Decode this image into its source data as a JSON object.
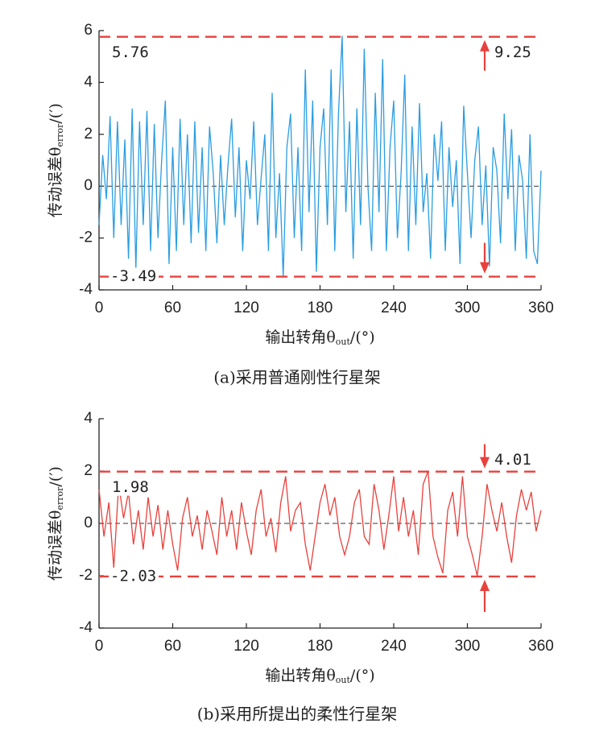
{
  "chart_data": [
    {
      "type": "line",
      "caption": "(a)采用普通刚性行星架",
      "xlabel": {
        "text": "输出转角θ",
        "sub": "out",
        "suffix": "/(°)"
      },
      "ylabel": {
        "text": "传动误差θ",
        "sub": "error",
        "suffix": "/(′)"
      },
      "xlim": [
        0,
        360
      ],
      "xticks": [
        0,
        60,
        120,
        180,
        240,
        300,
        360
      ],
      "ylim": [
        -4,
        6
      ],
      "yticks": [
        -4,
        -2,
        0,
        2,
        4,
        6
      ],
      "ref_lines": [
        5.76,
        -3.49
      ],
      "ref_color": "#e8413c",
      "range_label": 9.25,
      "range_arrows": "out",
      "x": [
        0,
        3,
        6,
        9,
        12,
        15,
        18,
        21,
        24,
        27,
        30,
        33,
        36,
        39,
        42,
        45,
        48,
        51,
        54,
        57,
        60,
        63,
        66,
        69,
        72,
        75,
        78,
        81,
        84,
        87,
        90,
        93,
        96,
        99,
        102,
        105,
        108,
        111,
        114,
        117,
        120,
        123,
        126,
        129,
        132,
        135,
        138,
        141,
        144,
        147,
        150,
        153,
        156,
        159,
        162,
        165,
        168,
        171,
        174,
        177,
        180,
        183,
        186,
        189,
        192,
        195,
        198,
        201,
        204,
        207,
        210,
        213,
        216,
        219,
        222,
        225,
        228,
        231,
        234,
        237,
        240,
        243,
        246,
        249,
        252,
        255,
        258,
        261,
        264,
        267,
        270,
        273,
        276,
        279,
        282,
        285,
        288,
        291,
        294,
        297,
        300,
        303,
        306,
        309,
        312,
        315,
        318,
        321,
        324,
        327,
        330,
        333,
        336,
        339,
        342,
        345,
        348,
        351,
        354,
        357,
        360
      ],
      "series": [
        {
          "color": "#2a9de0",
          "values": [
            -1.5,
            1.2,
            -0.5,
            2.7,
            -2,
            2.5,
            -1.5,
            1.8,
            -2.8,
            3.0,
            -3.2,
            2.5,
            -1.5,
            2.9,
            -2.5,
            2.4,
            -2,
            1,
            3.3,
            -3,
            1.5,
            -2.5,
            2.6,
            -1.5,
            2.0,
            -2.2,
            2.5,
            -1.8,
            1.5,
            -2.5,
            2.3,
            0.5,
            -2.2,
            1.2,
            -1.5,
            0.8,
            2.6,
            -1.2,
            1.5,
            -2.5,
            1.0,
            -0.5,
            2.5,
            -1.5,
            0.3,
            2.0,
            -2.5,
            3.6,
            -2,
            0.5,
            -3.5,
            1.5,
            2.8,
            -2,
            1.5,
            -2.5,
            4.5,
            -1,
            3.3,
            -3.3,
            1.5,
            3.0,
            -1.5,
            4.5,
            -2.5,
            2.8,
            5.8,
            -1,
            2.5,
            -2.8,
            3.0,
            -1.5,
            5.3,
            0,
            -2.5,
            3.6,
            -1,
            4.9,
            -2.5,
            1.5,
            3.3,
            -2,
            0.5,
            4.3,
            -2.5,
            2.3,
            -1.5,
            3.2,
            -1,
            0.5,
            -2.8,
            2,
            0.2,
            2.5,
            -2.5,
            1.5,
            -0.8,
            1.0,
            -3.0,
            3.1,
            0.5,
            -2,
            1,
            2.3,
            -1.5,
            0.8,
            -3.1,
            1.5,
            0.6,
            -2.2,
            2.8,
            -0.5,
            2.2,
            -2.5,
            1.2,
            0.2,
            -2.8,
            2.0,
            -2.5,
            -3,
            0.6
          ]
        }
      ]
    },
    {
      "type": "line",
      "caption": "(b)采用所提出的柔性行星架",
      "xlabel": {
        "text": "输出转角θ",
        "sub": "out",
        "suffix": "/(°)"
      },
      "ylabel": {
        "text": "传动误差θ",
        "sub": "error",
        "suffix": "/(′)"
      },
      "xlim": [
        0,
        360
      ],
      "xticks": [
        0,
        60,
        120,
        180,
        240,
        300,
        360
      ],
      "ylim": [
        -4,
        4
      ],
      "yticks": [
        -4,
        -2,
        0,
        2,
        4
      ],
      "ref_lines": [
        1.98,
        -2.03
      ],
      "ref_color": "#e8413c",
      "range_label": 4.01,
      "range_arrows": "in",
      "x": [
        0,
        4,
        8,
        12,
        16,
        20,
        24,
        28,
        32,
        36,
        40,
        44,
        48,
        52,
        56,
        60,
        64,
        68,
        72,
        76,
        80,
        84,
        88,
        92,
        96,
        100,
        104,
        108,
        112,
        116,
        120,
        124,
        128,
        132,
        136,
        140,
        144,
        148,
        152,
        156,
        160,
        164,
        168,
        172,
        176,
        180,
        184,
        188,
        192,
        196,
        200,
        204,
        208,
        212,
        216,
        220,
        224,
        228,
        232,
        236,
        240,
        244,
        248,
        252,
        256,
        260,
        264,
        268,
        272,
        276,
        280,
        284,
        288,
        292,
        296,
        300,
        304,
        308,
        312,
        316,
        320,
        324,
        328,
        332,
        336,
        340,
        344,
        348,
        352,
        356,
        360
      ],
      "series": [
        {
          "color": "#e8413c",
          "values": [
            1.3,
            -0.5,
            0.8,
            -1.7,
            1.5,
            0.2,
            1.2,
            -0.8,
            0.5,
            -1.0,
            1.0,
            -0.5,
            0.7,
            -1.0,
            0.5,
            -0.8,
            -1.8,
            0.2,
            1.0,
            -0.5,
            0.3,
            -1.0,
            0.5,
            -0.3,
            -1.2,
            1.0,
            -0.5,
            0.5,
            -1.0,
            0.8,
            -0.3,
            -1.2,
            0.5,
            1.3,
            -0.5,
            0.2,
            -1.1,
            0.8,
            1.8,
            -0.3,
            0.5,
            0.8,
            -0.8,
            -1.8,
            -0.5,
            0.8,
            1.5,
            0.3,
            1.0,
            -0.5,
            -1.2,
            -0.5,
            0.8,
            1.3,
            -0.5,
            -0.8,
            1.5,
            0.5,
            -1.0,
            0.3,
            1.8,
            -0.3,
            1.0,
            -0.5,
            0.5,
            -1.2,
            1.5,
            2.0,
            -0.5,
            -1.3,
            -1.9,
            0.5,
            1.2,
            -0.5,
            1.8,
            -0.5,
            -1.2,
            -2.0,
            -0.5,
            1.5,
            0.5,
            -0.3,
            0.8,
            -0.5,
            -1.5,
            0.3,
            1.3,
            0.5,
            1.2,
            -0.3,
            0.5
          ]
        }
      ]
    }
  ]
}
